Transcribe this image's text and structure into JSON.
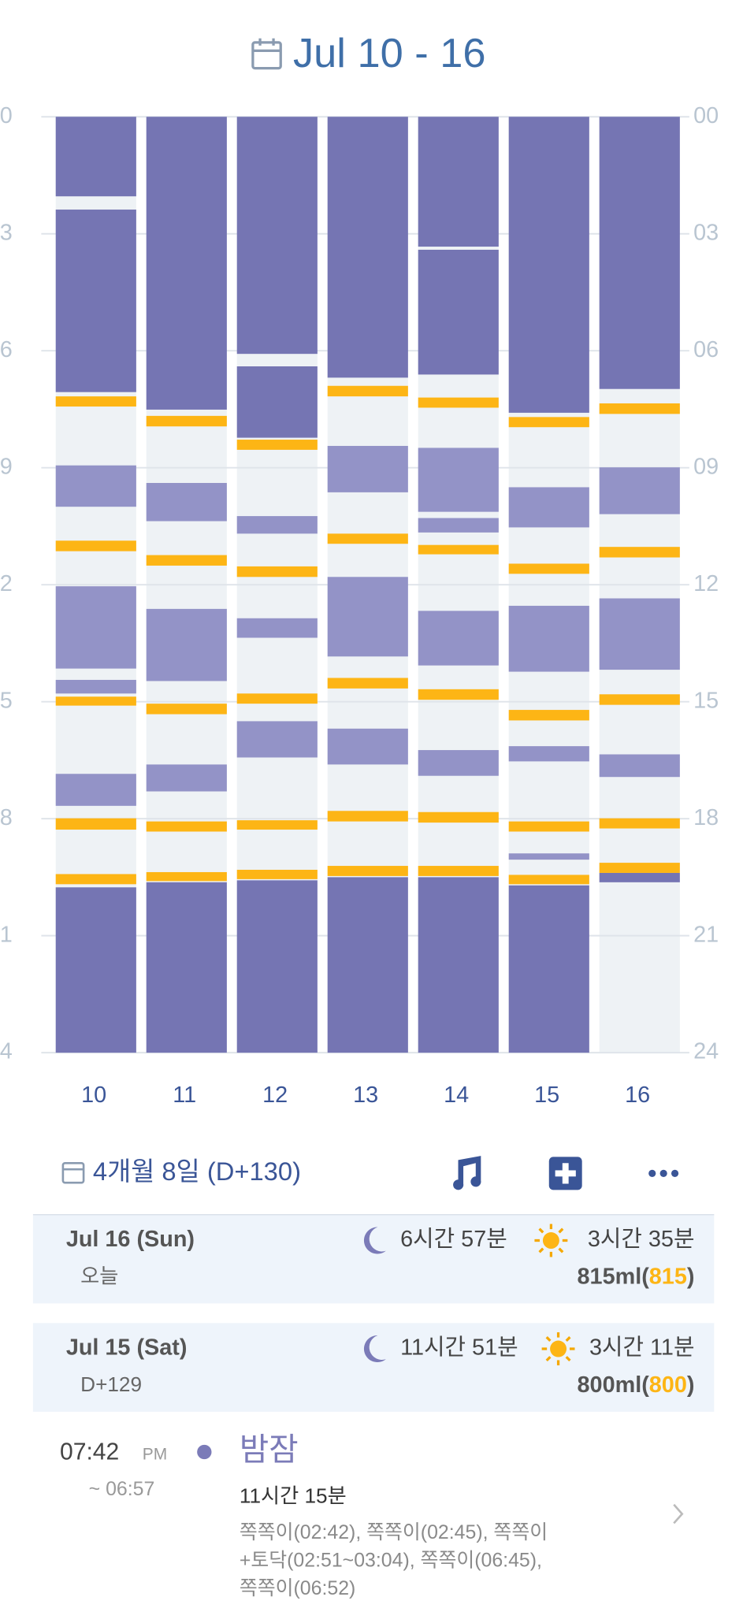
{
  "title": "Jul 10 - 16",
  "chart": {
    "ylim": [
      0,
      24
    ],
    "yticks": [
      {
        "value": 0,
        "label": "00"
      },
      {
        "value": 3,
        "label": "03"
      },
      {
        "value": 6,
        "label": "06"
      },
      {
        "value": 9,
        "label": "09"
      },
      12,
      15,
      18,
      21,
      24
    ],
    "colors": {
      "night": "#7575b3",
      "nap": "#9393c7",
      "feed": "#fdb515",
      "background": "#eef2f5",
      "today": "#d9252a"
    },
    "days": [
      {
        "label": "10",
        "night": [
          [
            0,
            2.04
          ],
          [
            2.38,
            7.06
          ],
          [
            19.76,
            24
          ]
        ],
        "nap": [
          [
            8.94,
            10.0
          ],
          [
            12.04,
            14.15
          ],
          [
            14.44,
            14.79
          ],
          [
            16.85,
            17.67
          ]
        ],
        "feed": [
          [
            7.17,
            7.43
          ],
          [
            10.87,
            11.14
          ],
          [
            14.87,
            15.1
          ],
          [
            17.99,
            18.28
          ],
          [
            19.42,
            19.68
          ]
        ]
      },
      {
        "label": "11",
        "night": [
          [
            0,
            7.51
          ],
          [
            19.63,
            24
          ]
        ],
        "nap": [
          [
            9.39,
            10.37
          ],
          [
            12.62,
            14.47
          ],
          [
            16.61,
            17.3
          ]
        ],
        "feed": [
          [
            7.67,
            7.94
          ],
          [
            11.24,
            11.51
          ],
          [
            15.05,
            15.32
          ],
          [
            18.07,
            18.33
          ],
          [
            19.37,
            19.6
          ]
        ]
      },
      {
        "label": "12",
        "night": [
          [
            0,
            6.08
          ],
          [
            6.4,
            8.23
          ],
          [
            19.58,
            24
          ]
        ],
        "nap": [
          [
            10.24,
            10.69
          ],
          [
            12.86,
            13.36
          ],
          [
            15.5,
            16.43
          ]
        ],
        "feed": [
          [
            8.28,
            8.54
          ],
          [
            11.53,
            11.8
          ],
          [
            14.79,
            15.05
          ],
          [
            18.04,
            18.28
          ],
          [
            19.31,
            19.55
          ]
        ]
      },
      {
        "label": "13",
        "night": [
          [
            0,
            6.69
          ],
          [
            19.5,
            24
          ]
        ],
        "nap": [
          [
            8.44,
            9.63
          ],
          [
            11.8,
            13.84
          ],
          [
            15.69,
            16.61
          ]
        ],
        "feed": [
          [
            6.9,
            7.17
          ],
          [
            10.69,
            10.95
          ],
          [
            14.39,
            14.66
          ],
          [
            17.8,
            18.07
          ],
          [
            19.21,
            19.47
          ]
        ]
      },
      {
        "label": "14",
        "night": [
          [
            0,
            3.33
          ],
          [
            3.41,
            6.61
          ],
          [
            19.5,
            24
          ]
        ],
        "nap": [
          [
            8.49,
            10.13
          ],
          [
            10.29,
            10.66
          ],
          [
            12.67,
            14.07
          ],
          [
            16.24,
            16.9
          ]
        ],
        "feed": [
          [
            7.2,
            7.46
          ],
          [
            10.98,
            11.22
          ],
          [
            14.68,
            14.95
          ],
          [
            17.83,
            18.1
          ],
          [
            19.21,
            19.47
          ]
        ]
      },
      {
        "label": "15",
        "night": [
          [
            0,
            7.59
          ],
          [
            19.71,
            24
          ]
        ],
        "nap": [
          [
            9.5,
            10.53
          ],
          [
            12.54,
            14.23
          ],
          [
            16.14,
            16.53
          ],
          [
            18.89,
            19.05
          ]
        ],
        "feed": [
          [
            7.7,
            7.96
          ],
          [
            11.46,
            11.72
          ],
          [
            15.21,
            15.48
          ],
          [
            18.07,
            18.33
          ],
          [
            19.44,
            19.68
          ]
        ]
      },
      {
        "label": "16",
        "today": true,
        "night": [
          [
            0,
            6.98
          ],
          [
            19.39,
            19.63
          ]
        ],
        "nap": [
          [
            8.99,
            10.19
          ],
          [
            12.35,
            14.18
          ],
          [
            16.35,
            16.93
          ]
        ],
        "feed": [
          [
            7.35,
            7.62
          ],
          [
            11.03,
            11.3
          ],
          [
            14.81,
            15.08
          ],
          [
            17.99,
            18.25
          ],
          [
            19.13,
            19.39
          ]
        ]
      }
    ]
  },
  "summary": {
    "age": "4개월 8일 (D+130)"
  },
  "cards": [
    {
      "date": "Jul 16 (Sun)",
      "sub": "오늘",
      "night_sleep": "6시간 57분",
      "day_sleep": "3시간 35분",
      "amount_parts": [
        "815ml(",
        "815",
        ")"
      ]
    },
    {
      "date": "Jul 15 (Sat)",
      "sub": "D+129",
      "night_sleep": "11시간 51분",
      "day_sleep": "3시간 11분",
      "amount_parts": [
        "800ml(",
        "800",
        ")"
      ]
    }
  ],
  "entry": {
    "time": "07:42",
    "ampm": "PM",
    "end": "~ 06:57",
    "kind": "밤잠",
    "duration": "11시간 15분",
    "notes": [
      "쪽쪽이(02:42), 쪽쪽이(02:45), 쪽쪽이",
      "+토닥(02:51~03:04), 쪽쪽이(06:45),",
      "쪽쪽이(06:52)"
    ]
  }
}
